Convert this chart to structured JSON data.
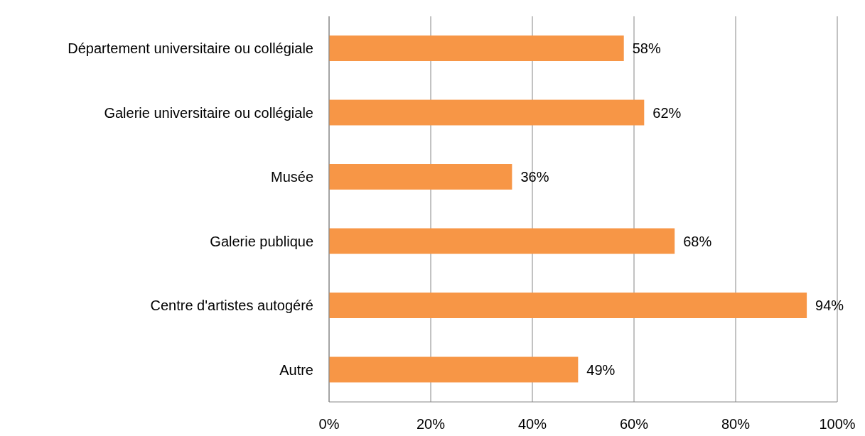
{
  "chart_data": {
    "type": "bar",
    "orientation": "horizontal",
    "categories": [
      "Département universitaire ou collégiale",
      "Galerie universitaire ou collégiale",
      "Musée",
      "Galerie publique",
      "Centre d'artistes autogéré",
      "Autre"
    ],
    "values": [
      58,
      62,
      36,
      68,
      94,
      49
    ],
    "value_labels": [
      "58%",
      "62%",
      "36%",
      "68%",
      "94%",
      "49%"
    ],
    "color": "#f79646",
    "xlim": [
      0,
      100
    ],
    "xticks": [
      {
        "value": 0,
        "label": "0%"
      },
      {
        "value": 20,
        "label": "20%"
      },
      {
        "value": 40,
        "label": "40%"
      },
      {
        "value": 60,
        "label": "60%"
      },
      {
        "value": 80,
        "label": "80%"
      },
      {
        "value": 100,
        "label": "100%"
      }
    ],
    "grid": "x"
  }
}
